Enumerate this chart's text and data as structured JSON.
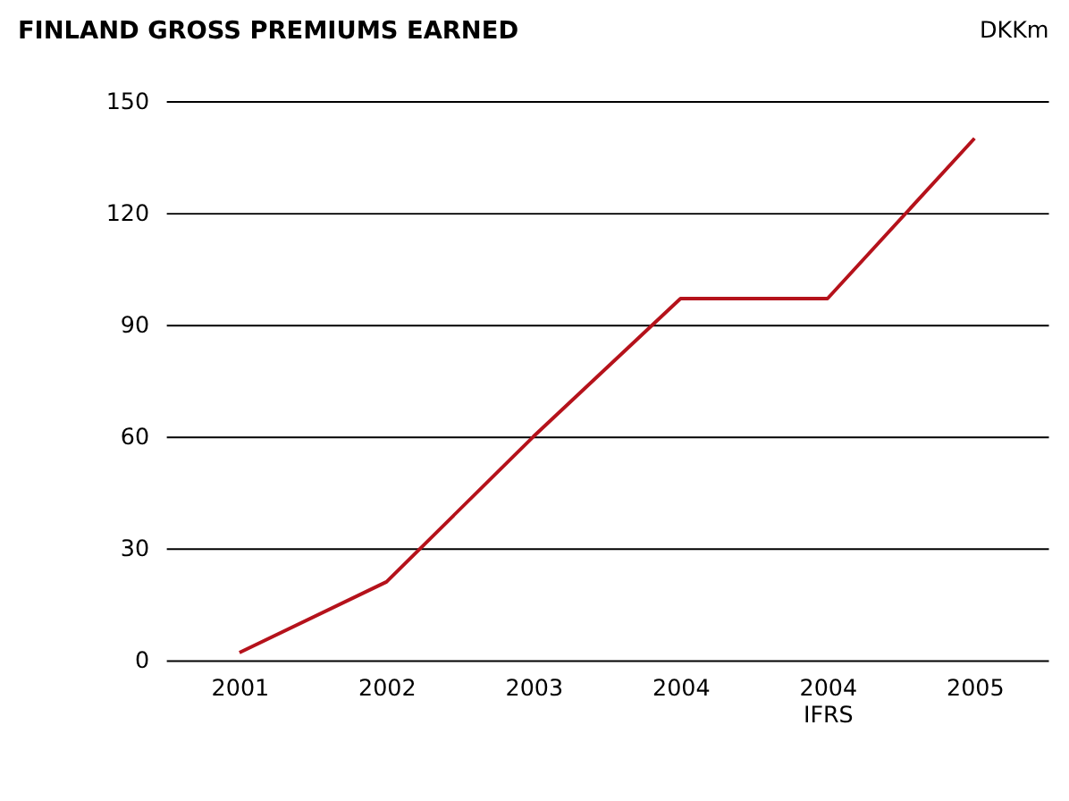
{
  "chart_data": {
    "type": "line",
    "title": "FINLAND GROSS PREMIUMS EARNED",
    "ylabel": "DKKm",
    "categories": [
      "2001",
      "2002",
      "2003",
      "2004",
      "2004\nIFRS",
      "2005"
    ],
    "series": [
      {
        "color": "#b5121b",
        "values": [
          2,
          21,
          60,
          97,
          97,
          140
        ]
      }
    ],
    "ylim": [
      0,
      150
    ],
    "yticks": [
      0,
      30,
      60,
      90,
      120,
      150
    ],
    "grid": "y",
    "marker": "none",
    "line_style": "solid"
  }
}
